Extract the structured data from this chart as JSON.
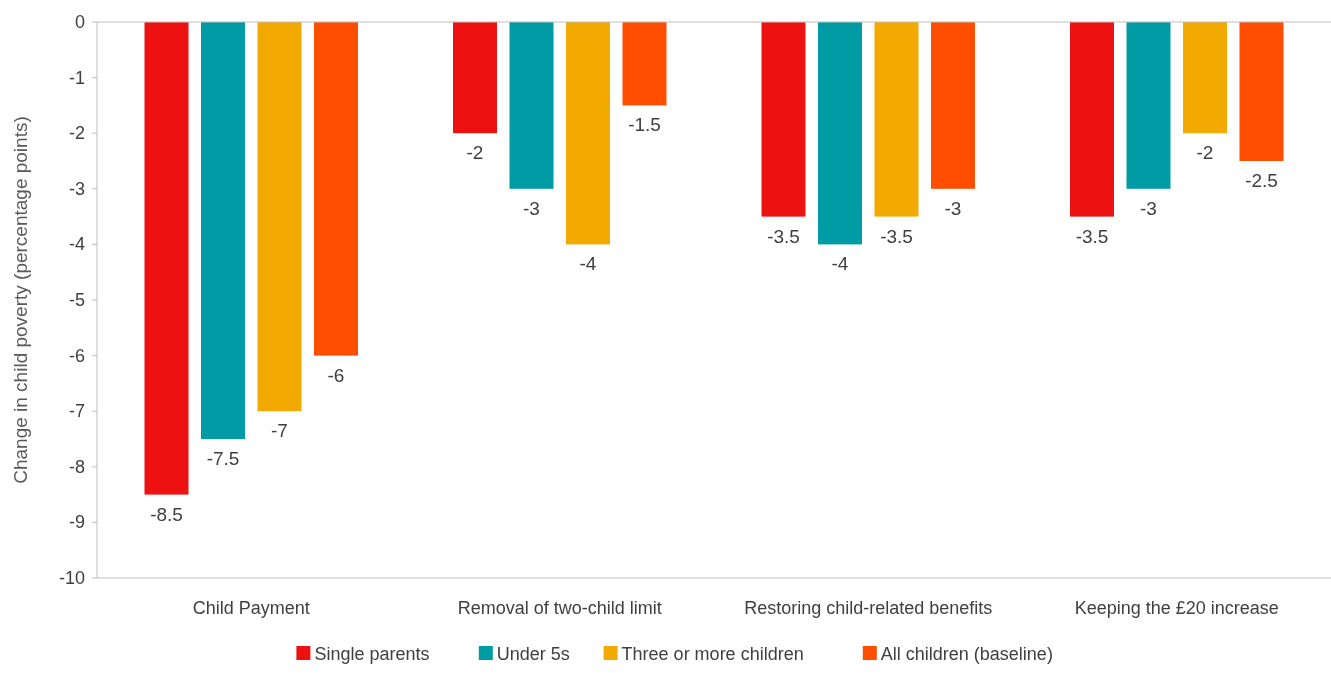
{
  "chart_data": {
    "type": "bar",
    "ylabel": "Change in child poverty (percentage points)",
    "categories": [
      "Child Payment",
      "Removal of two-child limit",
      "Restoring child-related benefits",
      "Keeping the £20 increase"
    ],
    "series": [
      {
        "name": "Single parents",
        "color": "#ee1111",
        "values": [
          -8.5,
          -2,
          -3.5,
          -3.5
        ]
      },
      {
        "name": "Under 5s",
        "color": "#009ca6",
        "values": [
          -7.5,
          -3,
          -4,
          -3
        ]
      },
      {
        "name": "Three or more children",
        "color": "#f2a900",
        "values": [
          -7,
          -4,
          -3.5,
          -2
        ]
      },
      {
        "name": "All children (baseline)",
        "color": "#ff4e00",
        "values": [
          -6,
          -1.5,
          -3,
          -2.5
        ]
      }
    ],
    "ylim": [
      -10,
      0
    ],
    "yticks": [
      -10,
      -9,
      -8,
      -7,
      -6,
      -5,
      -4,
      -3,
      -2,
      -1,
      0
    ],
    "data_labels": true,
    "legend": "bottom"
  }
}
